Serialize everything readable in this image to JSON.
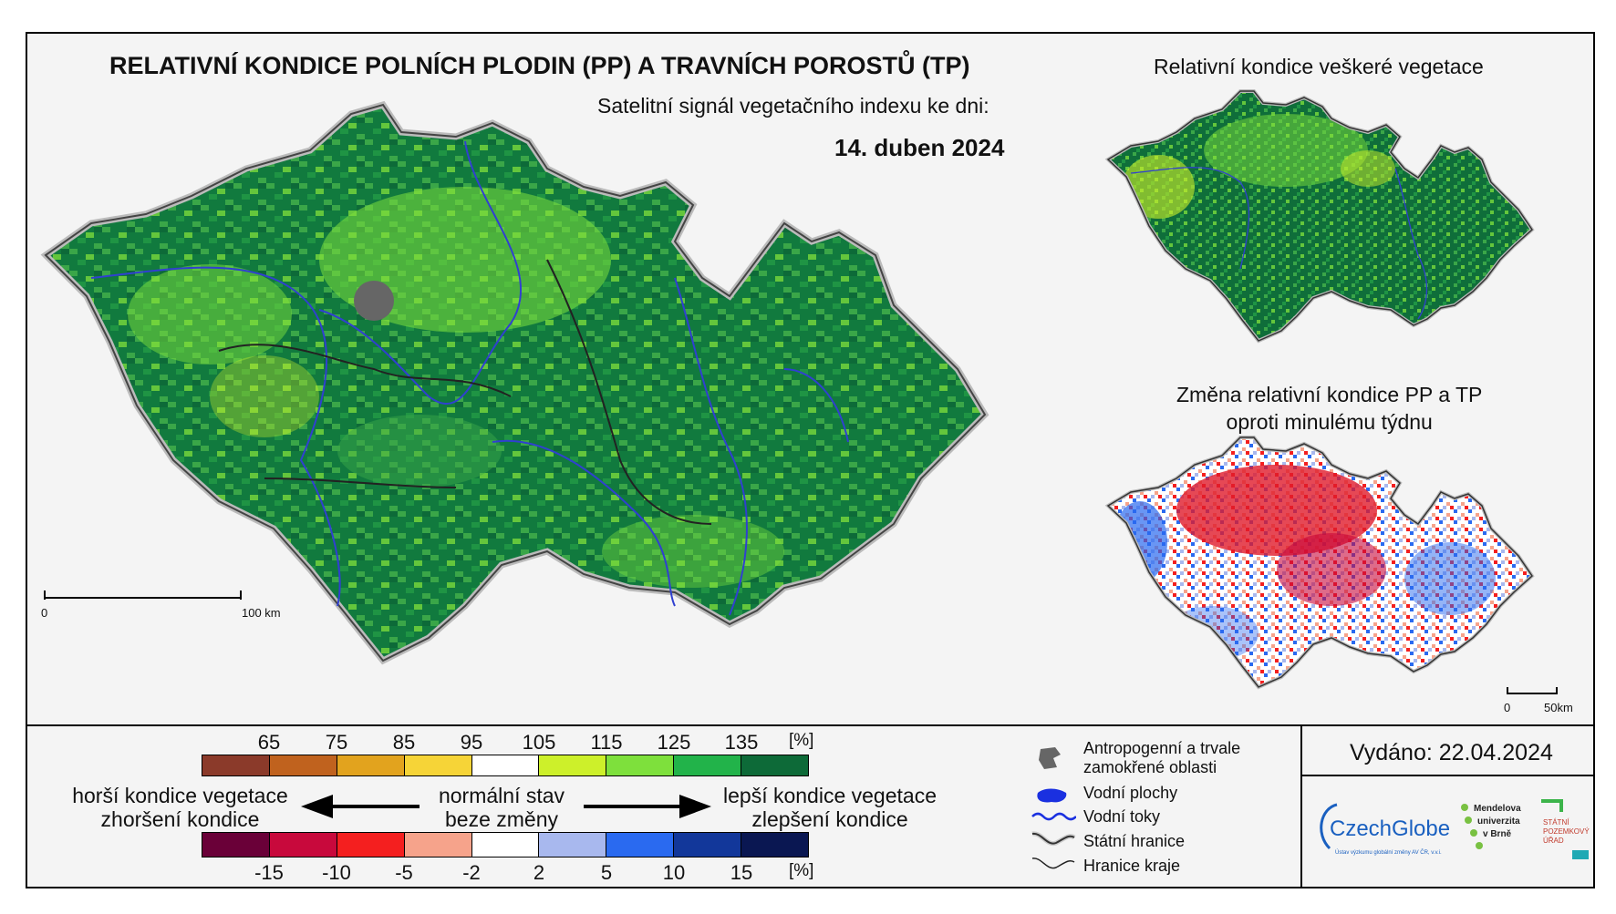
{
  "title": "RELATIVNÍ KONDICE POLNÍCH PLODIN (PP) A TRAVNÍCH POROSTŮ (TP)",
  "subtitle": "Satelitní signál vegetačního indexu ke dni:",
  "date": "14. duben 2024",
  "inset_top_title": "Relativní kondice veškeré vegetace",
  "inset_bottom_title": [
    "Změna relativní kondice PP a TP",
    "oproti minulému týdnu"
  ],
  "main_scale": {
    "start": "0",
    "end": "100 km"
  },
  "inset_scale": {
    "start": "0",
    "end": "50km"
  },
  "legend_condition": {
    "colors": [
      "#8b3a2a",
      "#c0621e",
      "#e2a31e",
      "#f6d437",
      "#ffffff",
      "#cdf02a",
      "#7ee03c",
      "#22b34a",
      "#0d6a38"
    ],
    "ticks": [
      "65",
      "75",
      "85",
      "95",
      "105",
      "115",
      "125",
      "135"
    ],
    "unit": "[%]"
  },
  "legend_change": {
    "colors": [
      "#6a0038",
      "#c8093c",
      "#f41f1f",
      "#f6a38b",
      "#ffffff",
      "#a8b8ee",
      "#2a6af0",
      "#12379a",
      "#0a1752"
    ],
    "ticks": [
      "-15",
      "-10",
      "-5",
      "-2",
      "2",
      "5",
      "10",
      "15"
    ],
    "unit": "[%]"
  },
  "labels": {
    "worse_1": "horší kondice vegetace",
    "worse_2": "zhoršení kondice",
    "normal_1": "normální stav",
    "normal_2": "beze změny",
    "better_1": "lepší kondice vegetace",
    "better_2": "zlepšení kondice"
  },
  "map_legend": {
    "anthropogenic": [
      "Antropogenní a trvale",
      "zamokřené oblasti"
    ],
    "water_areas": "Vodní plochy",
    "rivers": "Vodní toky",
    "state_border": "Státní hranice",
    "region_border": "Hranice kraje"
  },
  "issued": "Vydáno: 22.04.2024",
  "logos": {
    "czechglobe": "CzechGlobe",
    "czechglobe_sub": "Ústav výzkumu globální změny AV ČR, v.v.i.",
    "mendelu": [
      "Mendelova",
      "univerzita",
      "v Brně"
    ],
    "spu": [
      "STÁTNÍ",
      "POZEMKOVÝ",
      "ÚŘAD"
    ]
  }
}
